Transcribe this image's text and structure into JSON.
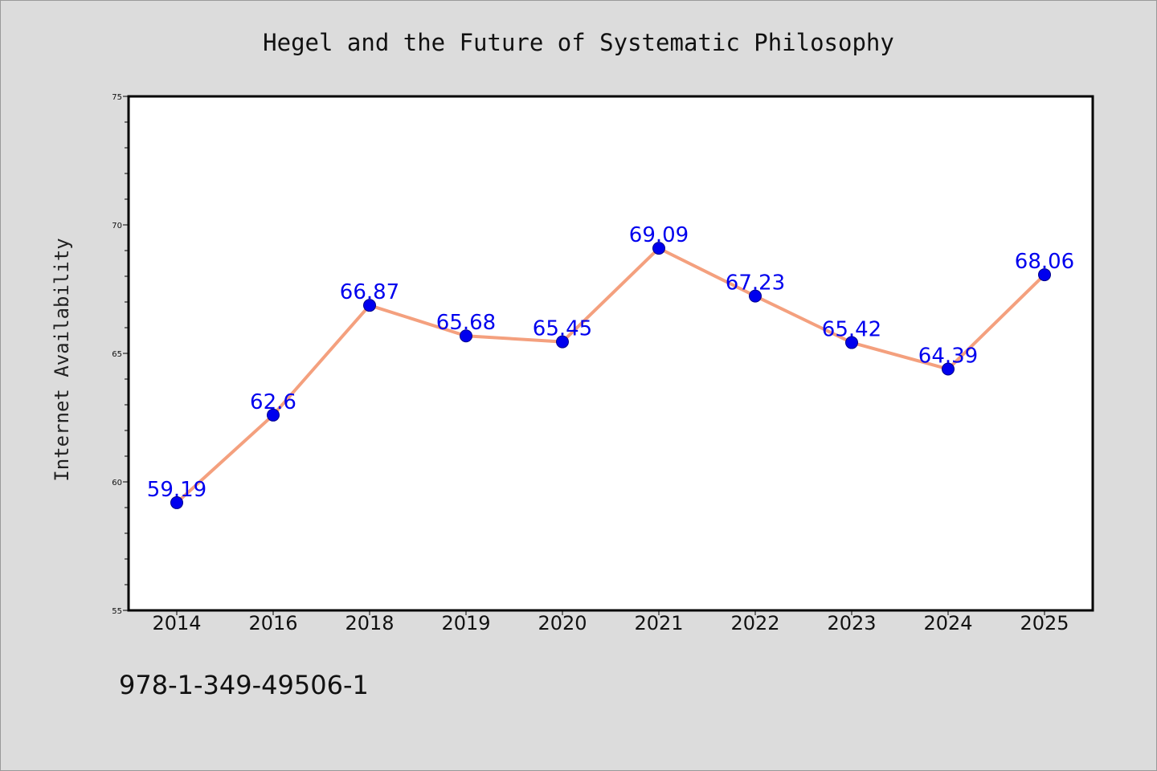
{
  "chart_data": {
    "type": "line",
    "title": "Hegel and the Future of Systematic Philosophy",
    "ylabel": "Internet Availability",
    "xlabel": "",
    "categories": [
      "2014",
      "2016",
      "2018",
      "2019",
      "2020",
      "2021",
      "2022",
      "2023",
      "2024",
      "2025"
    ],
    "values": [
      59.19,
      62.6,
      66.87,
      65.68,
      65.45,
      69.09,
      67.23,
      65.42,
      64.39,
      68.06
    ],
    "data_labels": [
      "59.19",
      "62.6",
      "66.87",
      "65.68",
      "65.45",
      "69.09",
      "67.23",
      "65.42",
      "64.39",
      "68.06"
    ],
    "ylim": [
      55,
      75
    ],
    "yticks": [
      55,
      60,
      65,
      70,
      75
    ],
    "grid": false,
    "line_color": "#f4a07e",
    "marker_color": "#0000ee",
    "label_color": "#0000ee",
    "background": "#dcdcdc",
    "plot_background": "#ffffff"
  },
  "footer": {
    "isbn": "978-1-349-49506-1"
  }
}
